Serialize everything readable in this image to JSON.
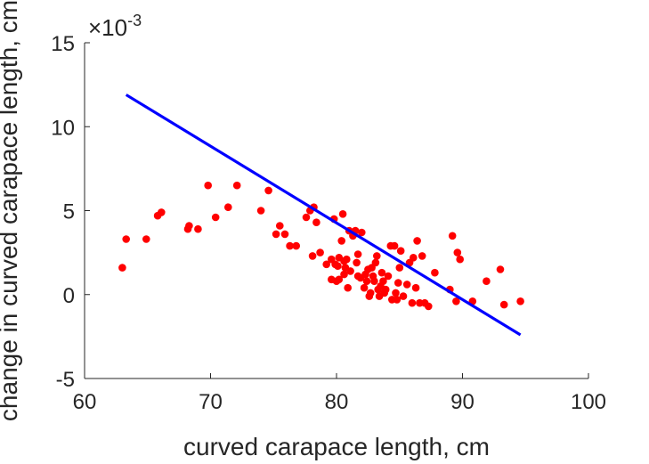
{
  "chart_data": {
    "type": "scatter",
    "title": "",
    "xlabel": "curved carapace length, cm",
    "ylabel": "change in curved carapace length, cm",
    "xlim": [
      60,
      100
    ],
    "ylim": [
      -5,
      15
    ],
    "x_ticks": [
      "60",
      "70",
      "80",
      "90",
      "100"
    ],
    "y_ticks": [
      "-5",
      "0",
      "5",
      "10",
      "15"
    ],
    "y_exponent_prefix": "×10",
    "y_exponent_power": "-3",
    "y_scale_multiplier": 0.001,
    "grid": false,
    "legend": "none",
    "colors": {
      "points": "#ff0000",
      "fit_line": "#0000ff",
      "axes": "#262626"
    },
    "series": [
      {
        "type": "scatter",
        "points": [
          [
            63.0,
            1.6
          ],
          [
            63.3,
            3.3
          ],
          [
            64.9,
            3.3
          ],
          [
            65.8,
            4.7
          ],
          [
            66.1,
            4.9
          ],
          [
            68.2,
            3.9
          ],
          [
            68.3,
            4.1
          ],
          [
            69.0,
            3.9
          ],
          [
            69.8,
            6.5
          ],
          [
            70.4,
            4.6
          ],
          [
            71.4,
            5.2
          ],
          [
            72.1,
            6.5
          ],
          [
            74.0,
            5.0
          ],
          [
            74.6,
            6.2
          ],
          [
            75.2,
            3.6
          ],
          [
            75.5,
            4.1
          ],
          [
            75.9,
            3.6
          ],
          [
            76.3,
            2.9
          ],
          [
            76.8,
            2.9
          ],
          [
            77.6,
            4.6
          ],
          [
            77.9,
            5.0
          ],
          [
            78.2,
            5.2
          ],
          [
            78.4,
            4.3
          ],
          [
            78.1,
            2.3
          ],
          [
            78.7,
            2.5
          ],
          [
            79.2,
            1.8
          ],
          [
            79.6,
            2.1
          ],
          [
            79.9,
            1.8
          ],
          [
            79.8,
            4.5
          ],
          [
            79.6,
            0.9
          ],
          [
            80.0,
            0.8
          ],
          [
            80.1,
            1.7
          ],
          [
            80.2,
            2.2
          ],
          [
            80.2,
            0.9
          ],
          [
            80.4,
            3.2
          ],
          [
            80.5,
            4.8
          ],
          [
            80.6,
            2.0
          ],
          [
            80.6,
            1.2
          ],
          [
            80.7,
            1.6
          ],
          [
            80.8,
            2.1
          ],
          [
            80.9,
            0.4
          ],
          [
            81.0,
            3.8
          ],
          [
            81.1,
            1.4
          ],
          [
            81.3,
            3.5
          ],
          [
            81.5,
            3.8
          ],
          [
            81.6,
            1.9
          ],
          [
            81.7,
            2.4
          ],
          [
            81.7,
            1.1
          ],
          [
            82.0,
            3.7
          ],
          [
            81.9,
            1.0
          ],
          [
            82.2,
            0.4
          ],
          [
            82.3,
            1.2
          ],
          [
            82.4,
            0.8
          ],
          [
            82.5,
            1.5
          ],
          [
            82.6,
            -0.1
          ],
          [
            82.7,
            0.1
          ],
          [
            82.8,
            1.6
          ],
          [
            82.9,
            1.1
          ],
          [
            83.0,
            0.8
          ],
          [
            83.1,
            1.9
          ],
          [
            83.2,
            2.3
          ],
          [
            83.3,
            0.3
          ],
          [
            83.4,
            -0.1
          ],
          [
            83.5,
            0.5
          ],
          [
            83.6,
            1.3
          ],
          [
            83.7,
            0.8
          ],
          [
            83.8,
            0.1
          ],
          [
            83.9,
            0.3
          ],
          [
            84.1,
            1.1
          ],
          [
            84.3,
            2.9
          ],
          [
            84.4,
            -0.3
          ],
          [
            84.6,
            2.9
          ],
          [
            84.7,
            0.1
          ],
          [
            84.8,
            -0.3
          ],
          [
            84.9,
            0.7
          ],
          [
            85.0,
            1.6
          ],
          [
            85.1,
            2.6
          ],
          [
            85.3,
            -0.1
          ],
          [
            85.6,
            0.6
          ],
          [
            85.8,
            1.9
          ],
          [
            86.0,
            -0.5
          ],
          [
            86.1,
            2.2
          ],
          [
            86.3,
            0.4
          ],
          [
            86.4,
            3.2
          ],
          [
            86.6,
            -0.5
          ],
          [
            86.8,
            2.3
          ],
          [
            87.0,
            -0.5
          ],
          [
            87.3,
            -0.7
          ],
          [
            87.8,
            1.3
          ],
          [
            89.0,
            0.3
          ],
          [
            89.2,
            3.5
          ],
          [
            89.5,
            -0.4
          ],
          [
            89.6,
            2.5
          ],
          [
            89.8,
            2.1
          ],
          [
            90.8,
            -0.4
          ],
          [
            91.9,
            0.8
          ],
          [
            93.0,
            1.5
          ],
          [
            93.3,
            -0.6
          ],
          [
            94.6,
            -0.4
          ]
        ]
      },
      {
        "type": "line",
        "points": [
          [
            63.3,
            11.9
          ],
          [
            94.6,
            -2.4
          ]
        ]
      }
    ]
  }
}
